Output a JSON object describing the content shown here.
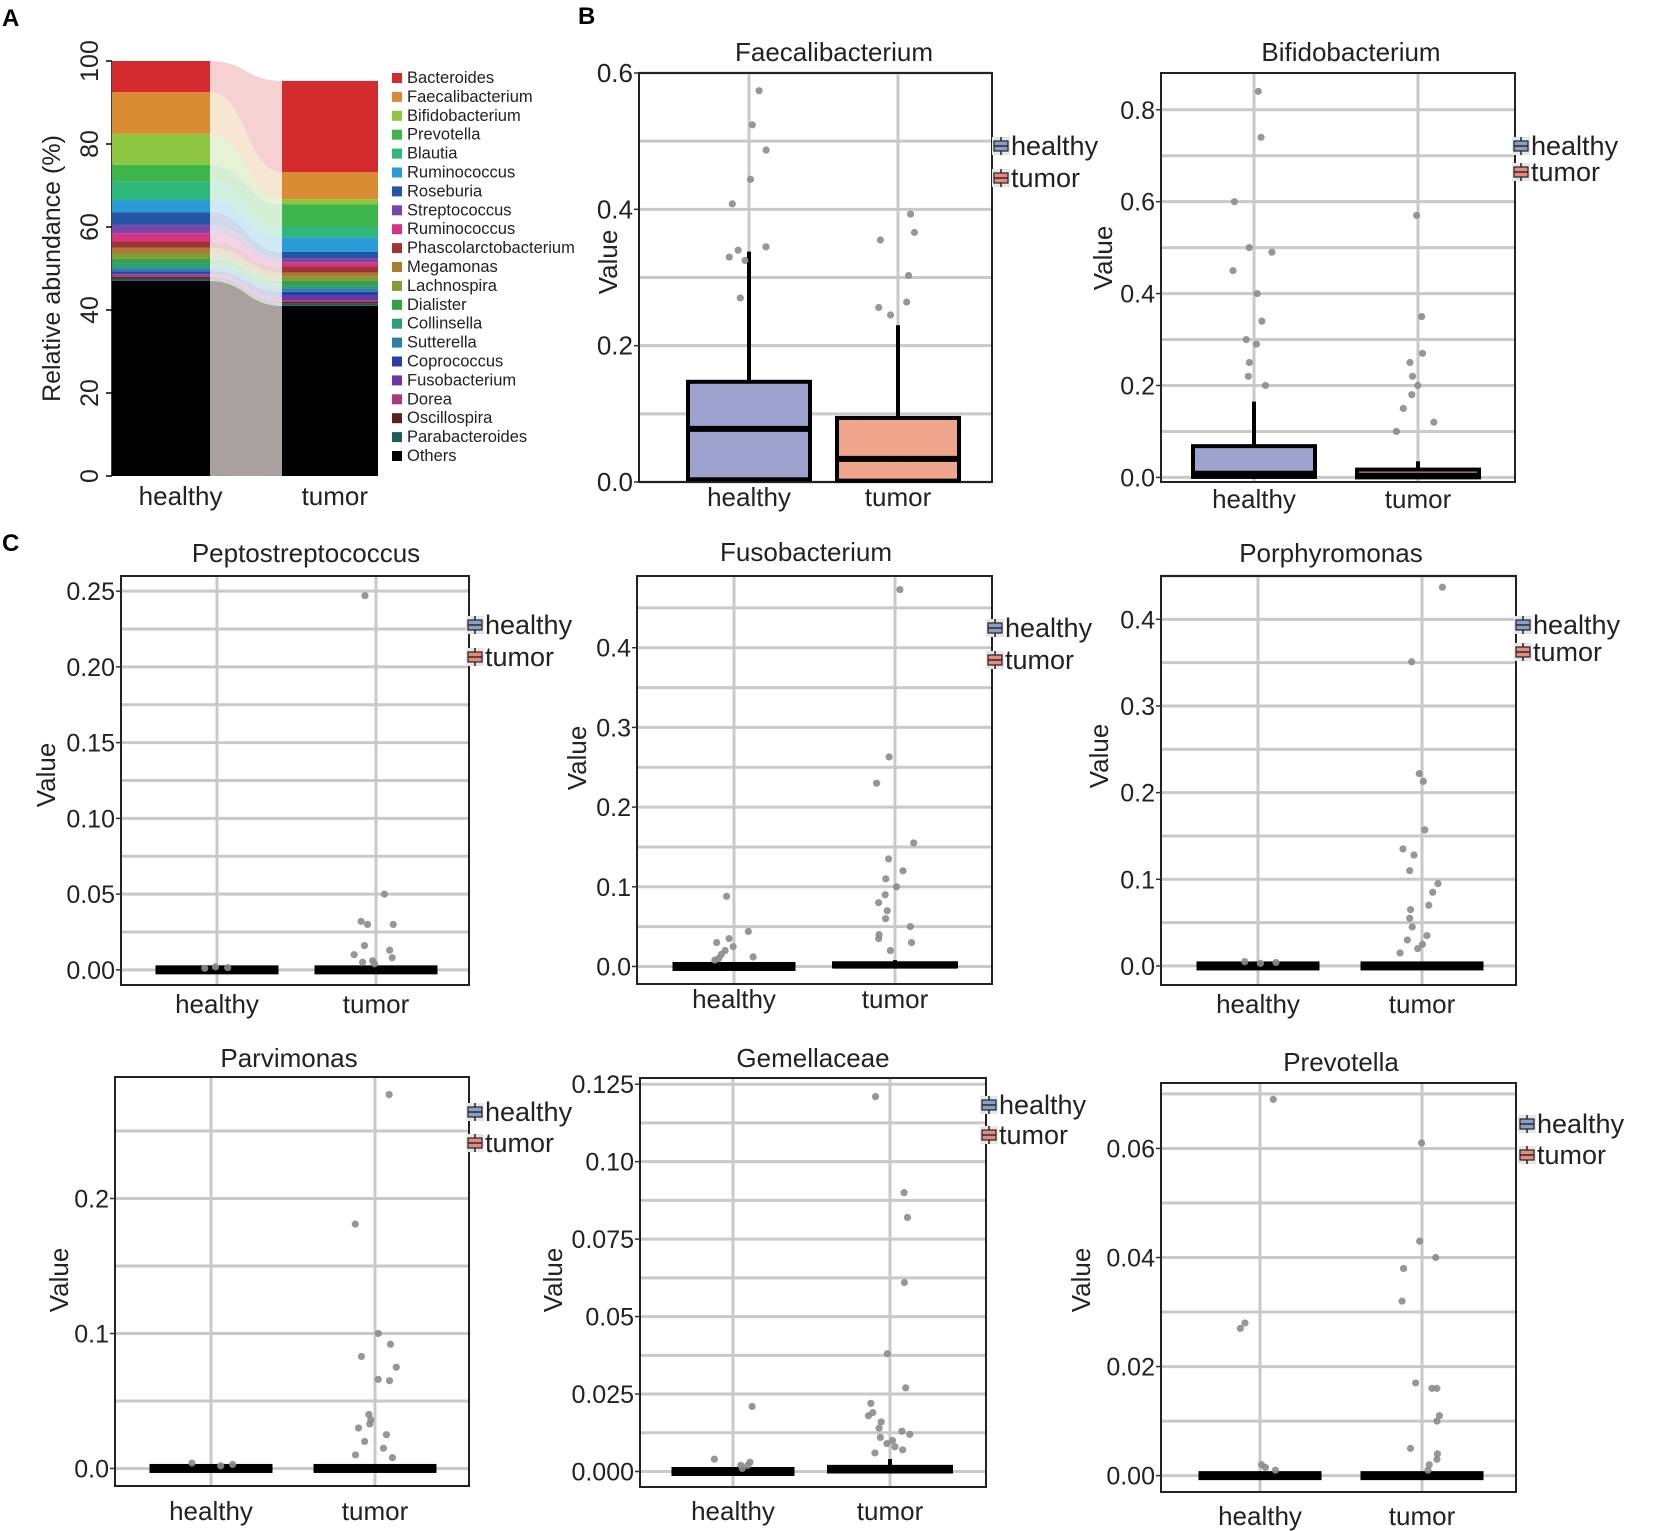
{
  "panel_labels": [
    "A",
    "B",
    "C"
  ],
  "chart_data": [
    {
      "id": "A",
      "type": "bar",
      "stacked": true,
      "title": "",
      "xlabel": "",
      "ylabel": "Relative abundance (%)",
      "ylim": [
        0,
        100
      ],
      "y_ticks": [
        0,
        20,
        40,
        60,
        80,
        100
      ],
      "categories": [
        "healthy",
        "tumor"
      ],
      "series": [
        {
          "name": "Bacteroides",
          "color": "#D42C2E",
          "values": [
            7.5,
            22
          ]
        },
        {
          "name": "Faecalibacterium",
          "color": "#D98C33",
          "values": [
            10,
            6.5
          ]
        },
        {
          "name": "Bifidobacterium",
          "color": "#8DC63F",
          "values": [
            7.5,
            1.2
          ]
        },
        {
          "name": "Prevotella",
          "color": "#3EB54A",
          "values": [
            4,
            5.5
          ]
        },
        {
          "name": "Blautia",
          "color": "#2EB87C",
          "values": [
            4.5,
            2.5
          ]
        },
        {
          "name": "Ruminococcus",
          "color": "#2A9BD6",
          "values": [
            3,
            3.5
          ]
        },
        {
          "name": "Roseburia",
          "color": "#2255A4",
          "values": [
            3,
            1.5
          ]
        },
        {
          "name": "Streptococcus",
          "color": "#7A45A6",
          "values": [
            2,
            1
          ]
        },
        {
          "name": "Ruminococcus",
          "color": "#D63384",
          "values": [
            2,
            1
          ]
        },
        {
          "name": "Phascolarctobacterium",
          "color": "#A03333",
          "values": [
            1.5,
            1.5
          ]
        },
        {
          "name": "Megamonas",
          "color": "#A87D30",
          "values": [
            1.5,
            1
          ]
        },
        {
          "name": "Lachnospira",
          "color": "#7F9E35",
          "values": [
            1.2,
            1
          ]
        },
        {
          "name": "Dialister",
          "color": "#34A048",
          "values": [
            1.2,
            1
          ]
        },
        {
          "name": "Collinsella",
          "color": "#2E9E7A",
          "values": [
            1,
            0.8
          ]
        },
        {
          "name": "Sutterella",
          "color": "#2C7FA6",
          "values": [
            0.8,
            0.8
          ]
        },
        {
          "name": "Coprococcus",
          "color": "#2A3FA6",
          "values": [
            0.6,
            1
          ]
        },
        {
          "name": "Fusobacterium",
          "color": "#6E36A2",
          "values": [
            0.2,
            1
          ]
        },
        {
          "name": "Dorea",
          "color": "#A8397F",
          "values": [
            0.5,
            0.4
          ]
        },
        {
          "name": "Oscillospira",
          "color": "#5A1F1F",
          "values": [
            0.5,
            0.4
          ]
        },
        {
          "name": "Parabacteroides",
          "color": "#1F5C5C",
          "values": [
            0.5,
            0.6
          ]
        },
        {
          "name": "Others",
          "color": "#000000",
          "values": [
            47,
            41
          ]
        }
      ]
    },
    {
      "id": "B1",
      "type": "box",
      "title": "Faecalibacterium",
      "xlabel": "",
      "ylabel": "Value",
      "ylim": [
        0,
        0.6
      ],
      "y_ticks": [
        0.0,
        0.2,
        0.4,
        0.6
      ],
      "y_tick_labels": [
        "0.0",
        "0.2",
        "0.4",
        "0.6"
      ],
      "categories": [
        "healthy",
        "tumor"
      ],
      "legend": [
        {
          "label": "healthy",
          "color": "#8A9EC8"
        },
        {
          "label": "tumor",
          "color": "#E68A80"
        }
      ],
      "boxes": [
        {
          "group": "healthy",
          "color": "#9DA3CE",
          "q1": 0.004,
          "median": 0.078,
          "q3": 0.147,
          "whisker_low": 0.0,
          "whisker_high": 0.338
        },
        {
          "group": "tumor",
          "color": "#EFA58C",
          "q1": 0.002,
          "median": 0.034,
          "q3": 0.094,
          "whisker_low": 0.0,
          "whisker_high": 0.23
        }
      ],
      "outliers": [
        {
          "group": "healthy",
          "values": [
            0.574,
            0.524,
            0.487,
            0.444,
            0.408,
            0.345,
            0.34,
            0.33,
            0.325,
            0.27
          ]
        },
        {
          "group": "tumor",
          "values": [
            0.393,
            0.366,
            0.355,
            0.303,
            0.264,
            0.256,
            0.245
          ]
        }
      ]
    },
    {
      "id": "B2",
      "type": "box",
      "title": "Bifidobacterium",
      "xlabel": "",
      "ylabel": "Value",
      "ylim": [
        -0.01,
        0.88
      ],
      "y_ticks": [
        0.0,
        0.2,
        0.4,
        0.6,
        0.8
      ],
      "y_tick_labels": [
        "0.0",
        "0.2",
        "0.4",
        "0.6",
        "0.8"
      ],
      "categories": [
        "healthy",
        "tumor"
      ],
      "legend": [
        {
          "label": "healthy",
          "color": "#8A9EC8"
        },
        {
          "label": "tumor",
          "color": "#E68A80"
        }
      ],
      "boxes": [
        {
          "group": "healthy",
          "color": "#9DA3CE",
          "q1": 0.001,
          "median": 0.008,
          "q3": 0.068,
          "whisker_low": 0.0,
          "whisker_high": 0.165
        },
        {
          "group": "tumor",
          "color": "#EFA58C",
          "q1": 0.0,
          "median": 0.004,
          "q3": 0.017,
          "whisker_low": 0.0,
          "whisker_high": 0.035
        }
      ],
      "outliers": [
        {
          "group": "healthy",
          "values": [
            0.84,
            0.74,
            0.6,
            0.5,
            0.49,
            0.45,
            0.4,
            0.34,
            0.3,
            0.29,
            0.25,
            0.22,
            0.2
          ]
        },
        {
          "group": "tumor",
          "values": [
            0.57,
            0.35,
            0.27,
            0.25,
            0.22,
            0.2,
            0.18,
            0.15,
            0.12,
            0.1
          ]
        }
      ]
    },
    {
      "id": "C1",
      "type": "box",
      "title": "Peptostreptococcus",
      "xlabel": "",
      "ylabel": "Value",
      "ylim": [
        -0.01,
        0.26
      ],
      "y_ticks": [
        0,
        0.05,
        0.1,
        0.15,
        0.2,
        0.25
      ],
      "y_tick_labels": [
        "0.00",
        "0.05",
        "0.10",
        "0.15",
        "0.20",
        "0.25"
      ],
      "categories": [
        "healthy",
        "tumor"
      ],
      "legend": [
        {
          "label": "healthy",
          "color": "#8A9EC8"
        },
        {
          "label": "tumor",
          "color": "#E68A80"
        }
      ],
      "boxes": [
        {
          "group": "healthy",
          "color": "#9DA3CE",
          "q1": 0.0,
          "median": 0.0,
          "q3": 0.0,
          "whisker_low": 0.0,
          "whisker_high": 0.0
        },
        {
          "group": "tumor",
          "color": "#EFA58C",
          "q1": 0.0,
          "median": 0.0,
          "q3": 0.001,
          "whisker_low": 0.0,
          "whisker_high": 0.002
        }
      ],
      "outliers": [
        {
          "group": "healthy",
          "values": [
            0.002,
            0.0015,
            0.001
          ]
        },
        {
          "group": "tumor",
          "values": [
            0.247,
            0.05,
            0.032,
            0.03,
            0.03,
            0.016,
            0.013,
            0.01,
            0.008,
            0.006,
            0.005,
            0.004
          ]
        }
      ]
    },
    {
      "id": "C2",
      "type": "box",
      "title": "Fusobacterium",
      "xlabel": "",
      "ylabel": "Value",
      "ylim": [
        -0.022,
        0.49
      ],
      "y_ticks": [
        0.0,
        0.1,
        0.2,
        0.3,
        0.4
      ],
      "y_tick_labels": [
        "0.0",
        "0.1",
        "0.2",
        "0.3",
        "0.4"
      ],
      "categories": [
        "healthy",
        "tumor"
      ],
      "legend": [
        {
          "label": "healthy",
          "color": "#8A9EC8"
        },
        {
          "label": "tumor",
          "color": "#E68A80"
        }
      ],
      "boxes": [
        {
          "group": "healthy",
          "color": "#9DA3CE",
          "q1": 0.0,
          "median": 0.0,
          "q3": 0.001,
          "whisker_low": 0.0,
          "whisker_high": 0.002
        },
        {
          "group": "tumor",
          "color": "#EFA58C",
          "q1": 0.0,
          "median": 0.001,
          "q3": 0.004,
          "whisker_low": 0.0,
          "whisker_high": 0.008
        }
      ],
      "outliers": [
        {
          "group": "healthy",
          "values": [
            0.088,
            0.044,
            0.035,
            0.03,
            0.025,
            0.02,
            0.015,
            0.012,
            0.01,
            0.008
          ]
        },
        {
          "group": "tumor",
          "values": [
            0.473,
            0.263,
            0.23,
            0.155,
            0.135,
            0.12,
            0.11,
            0.1,
            0.09,
            0.08,
            0.07,
            0.06,
            0.05,
            0.04,
            0.035,
            0.03,
            0.02
          ]
        }
      ]
    },
    {
      "id": "C3",
      "type": "box",
      "title": "Porphyromonas",
      "xlabel": "",
      "ylabel": "Value",
      "ylim": [
        -0.022,
        0.45
      ],
      "y_ticks": [
        0.0,
        0.1,
        0.2,
        0.3,
        0.4
      ],
      "y_tick_labels": [
        "0.0",
        "0.1",
        "0.2",
        "0.3",
        "0.4"
      ],
      "categories": [
        "healthy",
        "tumor"
      ],
      "legend": [
        {
          "label": "healthy",
          "color": "#8A9EC8"
        },
        {
          "label": "tumor",
          "color": "#E68A80"
        }
      ],
      "boxes": [
        {
          "group": "healthy",
          "color": "#9DA3CE",
          "q1": 0.0,
          "median": 0.0,
          "q3": 0.0,
          "whisker_low": 0.0,
          "whisker_high": 0.0
        },
        {
          "group": "tumor",
          "color": "#EFA58C",
          "q1": 0.0,
          "median": 0.0,
          "q3": 0.002,
          "whisker_low": 0.0,
          "whisker_high": 0.004
        }
      ],
      "outliers": [
        {
          "group": "healthy",
          "values": [
            0.005,
            0.004,
            0.003
          ]
        },
        {
          "group": "tumor",
          "values": [
            0.437,
            0.351,
            0.222,
            0.213,
            0.157,
            0.135,
            0.128,
            0.11,
            0.095,
            0.085,
            0.07,
            0.065,
            0.055,
            0.045,
            0.035,
            0.03,
            0.025,
            0.02,
            0.015
          ]
        }
      ]
    },
    {
      "id": "C4",
      "type": "box",
      "title": "Parvimonas",
      "xlabel": "",
      "ylabel": "Value",
      "ylim": [
        -0.013,
        0.29
      ],
      "y_ticks": [
        0.0,
        0.1,
        0.2
      ],
      "y_tick_labels": [
        "0.0",
        "0.1",
        "0.2"
      ],
      "categories": [
        "healthy",
        "tumor"
      ],
      "legend": [
        {
          "label": "healthy",
          "color": "#8A9EC8"
        },
        {
          "label": "tumor",
          "color": "#E68A80"
        }
      ],
      "boxes": [
        {
          "group": "healthy",
          "color": "#9DA3CE",
          "q1": 0.0,
          "median": 0.0,
          "q3": 0.0,
          "whisker_low": 0.0,
          "whisker_high": 0.0
        },
        {
          "group": "tumor",
          "color": "#EFA58C",
          "q1": 0.0,
          "median": 0.0,
          "q3": 0.001,
          "whisker_low": 0.0,
          "whisker_high": 0.003
        }
      ],
      "outliers": [
        {
          "group": "healthy",
          "values": [
            0.004,
            0.003,
            0.002
          ]
        },
        {
          "group": "tumor",
          "values": [
            0.277,
            0.181,
            0.1,
            0.092,
            0.083,
            0.075,
            0.066,
            0.065,
            0.04,
            0.036,
            0.033,
            0.03,
            0.025,
            0.02,
            0.015,
            0.01,
            0.008
          ]
        }
      ]
    },
    {
      "id": "C5",
      "type": "box",
      "title": "Gemellaceae",
      "xlabel": "",
      "ylabel": "Value",
      "ylim": [
        -0.005,
        0.127
      ],
      "y_ticks": [
        0.0,
        0.025,
        0.05,
        0.075,
        0.1,
        0.125
      ],
      "y_tick_labels": [
        "0.000",
        "0.025",
        "0.05",
        "0.075",
        "0.10",
        "0.125"
      ],
      "categories": [
        "healthy",
        "tumor"
      ],
      "legend": [
        {
          "label": "healthy",
          "color": "#8A9EC8"
        },
        {
          "label": "tumor",
          "color": "#E68A80"
        }
      ],
      "boxes": [
        {
          "group": "healthy",
          "color": "#9DA3CE",
          "q1": 0.0,
          "median": 0.0,
          "q3": 0.0,
          "whisker_low": 0.0,
          "whisker_high": 0.0
        },
        {
          "group": "tumor",
          "color": "#EFA58C",
          "q1": 0.0,
          "median": 0.0005,
          "q3": 0.0015,
          "whisker_low": 0.0,
          "whisker_high": 0.004
        }
      ],
      "outliers": [
        {
          "group": "healthy",
          "values": [
            0.021,
            0.004,
            0.003,
            0.002,
            0.002,
            0.001
          ]
        },
        {
          "group": "tumor",
          "values": [
            0.121,
            0.09,
            0.082,
            0.061,
            0.038,
            0.027,
            0.022,
            0.019,
            0.018,
            0.016,
            0.014,
            0.013,
            0.012,
            0.011,
            0.01,
            0.009,
            0.008,
            0.007,
            0.006
          ]
        }
      ]
    },
    {
      "id": "C6",
      "type": "box",
      "title": "Prevotella",
      "xlabel": "",
      "ylabel": "Value",
      "ylim": [
        -0.003,
        0.072
      ],
      "y_ticks": [
        0.0,
        0.02,
        0.04,
        0.06
      ],
      "y_tick_labels": [
        "0.00",
        "0.02",
        "0.04",
        "0.06"
      ],
      "categories": [
        "healthy",
        "tumor"
      ],
      "legend": [
        {
          "label": "healthy",
          "color": "#8A9EC8"
        },
        {
          "label": "tumor",
          "color": "#E68A80"
        }
      ],
      "boxes": [
        {
          "group": "healthy",
          "color": "#9DA3CE",
          "q1": 0.0,
          "median": 0.0,
          "q3": 0.0,
          "whisker_low": 0.0,
          "whisker_high": 0.0
        },
        {
          "group": "tumor",
          "color": "#EFA58C",
          "q1": 0.0,
          "median": 0.0,
          "q3": 0.0002,
          "whisker_low": 0.0,
          "whisker_high": 0.0005
        }
      ],
      "outliers": [
        {
          "group": "healthy",
          "values": [
            0.069,
            0.028,
            0.027,
            0.002,
            0.0015,
            0.001
          ]
        },
        {
          "group": "tumor",
          "values": [
            0.061,
            0.043,
            0.04,
            0.038,
            0.032,
            0.017,
            0.016,
            0.016,
            0.011,
            0.01,
            0.005,
            0.004,
            0.003,
            0.002,
            0.001
          ]
        }
      ]
    }
  ]
}
